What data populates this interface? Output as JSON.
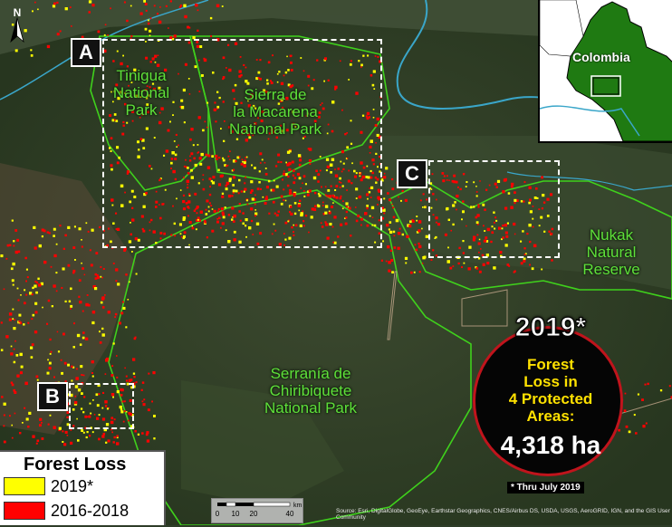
{
  "map": {
    "labels": {
      "tinigua": "Tinigua\nNational\nPark",
      "macarena": "Sierra de\nla Macarena\nNational Park",
      "nukak": "Nukak\nNatural\nReserve",
      "chiribiquete": "Serranía de\nChiribiquete\nNational Park"
    },
    "boxes": {
      "a": "A",
      "b": "B",
      "c": "C"
    },
    "colors": {
      "loss_2019": "#ffff00",
      "loss_2016_2018": "#ff0000",
      "park_boundary": "#3fd11c",
      "river": "#3aa6c9"
    }
  },
  "inset": {
    "country_label": "Colombia",
    "country_color": "#1f7a12"
  },
  "badge": {
    "year": "2019*",
    "subtitle": "Forest\nLoss in\n4 Protected\nAreas:",
    "value": "4,318 ha"
  },
  "footnote": "* Thru July 2019",
  "legend": {
    "title": "Forest Loss",
    "items": [
      {
        "label": "2019*",
        "color": "#ffff00"
      },
      {
        "label": "2016-2018",
        "color": "#ff0000"
      }
    ]
  },
  "scalebar": {
    "ticks": [
      "0",
      "10",
      "20",
      "40"
    ],
    "unit": "km"
  },
  "north_arrow": {
    "letter": "N",
    "icon": "north-arrow-icon"
  },
  "source": "Source: Esri, DigitalGlobe, GeoEye, Earthstar Geographics, CNES/Airbus DS, USDA, USGS, AeroGRID, IGN, and the GIS User Community"
}
